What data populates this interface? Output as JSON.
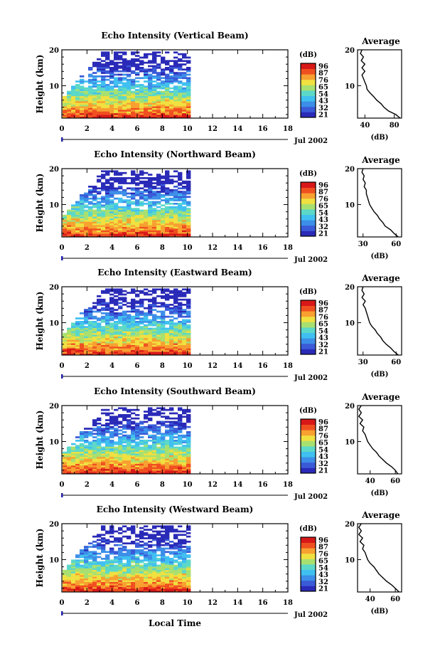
{
  "figure": {
    "x_axis_label": "Local Time",
    "date_label": "Jul 2002",
    "x_ticks": [
      "0",
      "2",
      "4",
      "6",
      "8",
      "10",
      "12",
      "14",
      "16",
      "18"
    ],
    "y_ticks": [
      "20",
      "10"
    ],
    "y_axis_label": "Height (km)",
    "colorbar_unit": "(dB)",
    "colorbar_ticks": [
      "96",
      "87",
      "76",
      "65",
      "54",
      "43",
      "32",
      "21"
    ],
    "colormap": [
      "#2a2ab8",
      "#3a5ad8",
      "#3c8ee8",
      "#40c0f0",
      "#5cd8c8",
      "#a8e070",
      "#f0e040",
      "#f8a030",
      "#f05020",
      "#d81818"
    ],
    "average_title": "Average",
    "average_xlabel": "(dB)",
    "trace_color": "#000000"
  },
  "chart_data": [
    {
      "type": "heatmap",
      "title": "Echo Intensity (Vertical Beam)",
      "xlabel": "",
      "ylabel": "Height (km)",
      "xlim": [
        0,
        18
      ],
      "ylim": [
        1,
        20
      ],
      "data_x_end": 10,
      "clim": [
        21,
        96
      ],
      "avg": {
        "type": "line",
        "title": "Average",
        "xlabel": "(dB)",
        "xticks": [
          "40",
          "80"
        ],
        "xlim": [
          30,
          90
        ],
        "profile": [
          [
            88,
            1
          ],
          [
            82,
            2
          ],
          [
            72,
            3
          ],
          [
            66,
            4
          ],
          [
            62,
            5
          ],
          [
            56,
            6
          ],
          [
            52,
            7
          ],
          [
            47,
            8
          ],
          [
            43,
            9
          ],
          [
            42,
            10
          ],
          [
            40,
            11
          ],
          [
            38,
            12
          ],
          [
            36,
            13
          ],
          [
            40,
            14
          ],
          [
            36,
            15
          ],
          [
            40,
            16
          ],
          [
            35,
            17
          ],
          [
            38,
            18
          ],
          [
            34,
            19
          ],
          [
            36,
            20
          ]
        ]
      }
    },
    {
      "type": "heatmap",
      "title": "Echo Intensity (Northward Beam)",
      "xlabel": "",
      "ylabel": "Height (km)",
      "xlim": [
        0,
        18
      ],
      "ylim": [
        1,
        20
      ],
      "data_x_end": 10,
      "clim": [
        21,
        96
      ],
      "avg": {
        "type": "line",
        "title": "Average",
        "xlabel": "(dB)",
        "xticks": [
          "30",
          "60"
        ],
        "xlim": [
          25,
          65
        ],
        "profile": [
          [
            62,
            1
          ],
          [
            58,
            2
          ],
          [
            55,
            3
          ],
          [
            50,
            4
          ],
          [
            48,
            5
          ],
          [
            45,
            6
          ],
          [
            43,
            7
          ],
          [
            40,
            8
          ],
          [
            38,
            9
          ],
          [
            36,
            10
          ],
          [
            35,
            11
          ],
          [
            34,
            12
          ],
          [
            33,
            13
          ],
          [
            33,
            14
          ],
          [
            31,
            15
          ],
          [
            32,
            16
          ],
          [
            30,
            17
          ],
          [
            31,
            18
          ],
          [
            29,
            19
          ],
          [
            30,
            20
          ]
        ]
      }
    },
    {
      "type": "heatmap",
      "title": "Echo Intensity (Eastward Beam)",
      "xlabel": "",
      "ylabel": "Height (km)",
      "xlim": [
        0,
        18
      ],
      "ylim": [
        1,
        20
      ],
      "data_x_end": 10,
      "clim": [
        21,
        96
      ],
      "avg": {
        "type": "line",
        "title": "Average",
        "xlabel": "(dB)",
        "xticks": [
          "30",
          "60"
        ],
        "xlim": [
          25,
          65
        ],
        "profile": [
          [
            62,
            1
          ],
          [
            58,
            2
          ],
          [
            55,
            3
          ],
          [
            51,
            4
          ],
          [
            48,
            5
          ],
          [
            46,
            6
          ],
          [
            43,
            7
          ],
          [
            41,
            8
          ],
          [
            38,
            9
          ],
          [
            36,
            10
          ],
          [
            35,
            11
          ],
          [
            34,
            12
          ],
          [
            33,
            13
          ],
          [
            32,
            14
          ],
          [
            30,
            15
          ],
          [
            32,
            16
          ],
          [
            29,
            17
          ],
          [
            31,
            18
          ],
          [
            29,
            19
          ],
          [
            30,
            20
          ]
        ]
      }
    },
    {
      "type": "heatmap",
      "title": "Echo Intensity (Southward Beam)",
      "xlabel": "",
      "ylabel": "Height (km)",
      "xlim": [
        0,
        18
      ],
      "ylim": [
        1,
        20
      ],
      "data_x_end": 10,
      "clim": [
        21,
        96
      ],
      "avg": {
        "type": "line",
        "title": "Average",
        "xlabel": "(dB)",
        "xticks": [
          "40",
          "60"
        ],
        "xlim": [
          30,
          65
        ],
        "profile": [
          [
            62,
            1
          ],
          [
            60,
            2
          ],
          [
            57,
            3
          ],
          [
            53,
            4
          ],
          [
            50,
            5
          ],
          [
            47,
            6
          ],
          [
            45,
            7
          ],
          [
            42,
            8
          ],
          [
            40,
            9
          ],
          [
            38,
            10
          ],
          [
            37,
            11
          ],
          [
            36,
            12
          ],
          [
            34,
            13
          ],
          [
            35,
            14
          ],
          [
            32,
            15
          ],
          [
            34,
            16
          ],
          [
            31,
            17
          ],
          [
            33,
            18
          ],
          [
            31,
            19
          ],
          [
            33,
            20
          ]
        ]
      }
    },
    {
      "type": "heatmap",
      "title": "Echo Intensity (Westward Beam)",
      "xlabel": "Local Time",
      "ylabel": "Height (km)",
      "xlim": [
        0,
        18
      ],
      "ylim": [
        1,
        20
      ],
      "data_x_end": 10,
      "clim": [
        21,
        96
      ],
      "avg": {
        "type": "line",
        "title": "Average",
        "xlabel": "(dB)",
        "xticks": [
          "40",
          "60"
        ],
        "xlim": [
          30,
          65
        ],
        "profile": [
          [
            63,
            1
          ],
          [
            60,
            2
          ],
          [
            57,
            3
          ],
          [
            53,
            4
          ],
          [
            50,
            5
          ],
          [
            47,
            6
          ],
          [
            45,
            7
          ],
          [
            43,
            8
          ],
          [
            40,
            9
          ],
          [
            38,
            10
          ],
          [
            37,
            11
          ],
          [
            36,
            12
          ],
          [
            34,
            13
          ],
          [
            35,
            14
          ],
          [
            32,
            15
          ],
          [
            34,
            16
          ],
          [
            31,
            17
          ],
          [
            33,
            18
          ],
          [
            31,
            19
          ],
          [
            33,
            20
          ]
        ]
      }
    }
  ]
}
